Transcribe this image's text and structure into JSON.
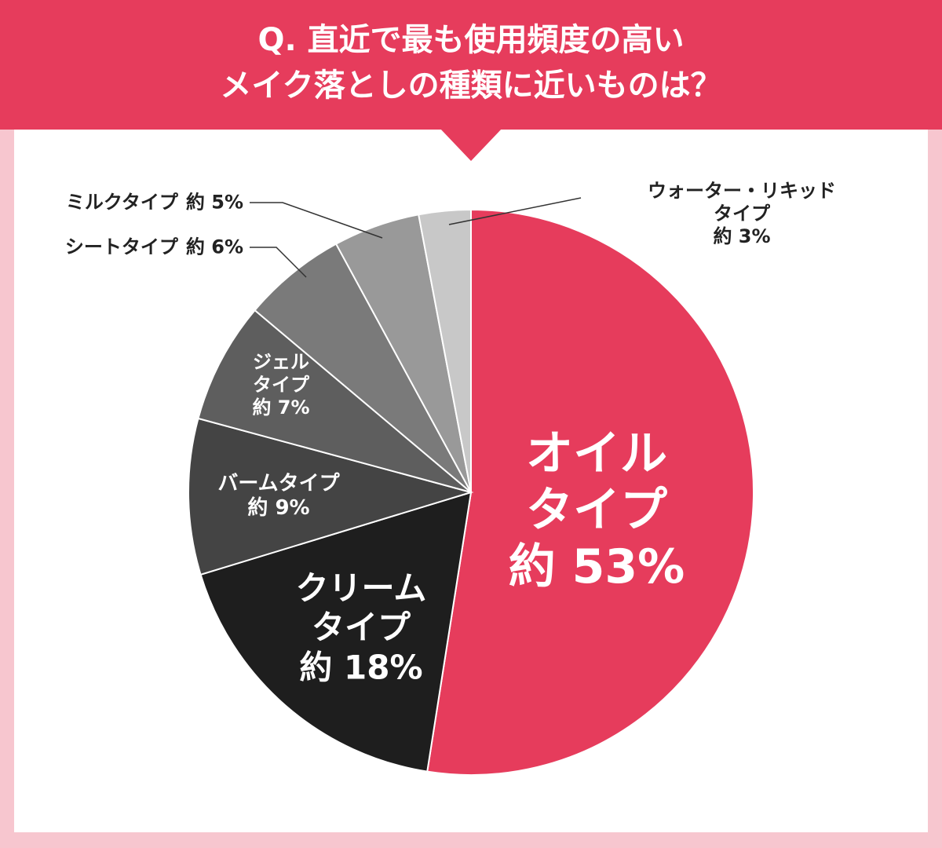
{
  "chart_data": {
    "type": "pie",
    "title": "Q. 直近で最も使用頻度の高い\nメイク落としの種類に近いものは？",
    "categories": [
      "オイル\nタイプ",
      "クリーム\nタイプ",
      "バームタイプ",
      "ジェル\nタイプ",
      "シートタイプ",
      "ミルクタイプ",
      "ウォーター・リキッドタイプ"
    ],
    "values": [
      53,
      18,
      9,
      7,
      6,
      5,
      3
    ],
    "value_labels": [
      "約 53%",
      "約 18%",
      "約 9%",
      "約 7%",
      "約 6%",
      "約 5%",
      "約 3%"
    ],
    "colors": [
      "#e63c5c",
      "#1e1e1e",
      "#444444",
      "#5e5e5e",
      "#7a7a7a",
      "#999999",
      "#c8c8c8"
    ]
  }
}
